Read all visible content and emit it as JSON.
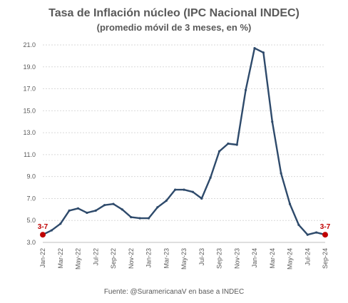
{
  "chart_data": {
    "type": "line",
    "title": "Tasa de Inflación núcleo (IPC Nacional INDEC)",
    "subtitle": "(promedio móvil de 3 meses, en %)",
    "source": "Fuente: @SuramericanaV en base a INDEC",
    "ylim": [
      3.0,
      21.0
    ],
    "yticks": [
      "3.0",
      "5.0",
      "7.0",
      "9.0",
      "11.0",
      "13.0",
      "15.0",
      "17.0",
      "19.0",
      "21.0"
    ],
    "categories": [
      "Jan-22",
      "Feb-22",
      "Mar-22",
      "Apr-22",
      "May-22",
      "Jun-22",
      "Jul-22",
      "Aug-22",
      "Sep-22",
      "Oct-22",
      "Nov-22",
      "Dec-22",
      "Jan-23",
      "Feb-23",
      "Mar-23",
      "Apr-23",
      "May-23",
      "Jun-23",
      "Jul-23",
      "Aug-23",
      "Sep-23",
      "Oct-23",
      "Nov-23",
      "Dec-23",
      "Jan-24",
      "Feb-24",
      "Mar-24",
      "Apr-24",
      "May-24",
      "Jun-24",
      "Jul-24",
      "Aug-24",
      "Sep-24"
    ],
    "xticks": [
      "Jan-22",
      "Mar-22",
      "May-22",
      "Jul-22",
      "Sep-22",
      "Nov-22",
      "Jan-23",
      "Mar-23",
      "May-23",
      "Jul-23",
      "Sep-23",
      "Nov-23",
      "Jan-24",
      "Mar-24",
      "May-24",
      "Jul-24",
      "Sep-24"
    ],
    "series": [
      {
        "values": [
          3.7,
          4.1,
          4.7,
          5.9,
          6.1,
          5.7,
          5.9,
          6.4,
          6.5,
          6.0,
          5.3,
          5.2,
          5.2,
          6.2,
          6.8,
          7.8,
          7.8,
          7.6,
          7.0,
          8.9,
          11.3,
          12.0,
          11.9,
          16.9,
          20.7,
          20.3,
          14.0,
          9.3,
          6.5,
          4.6,
          3.7,
          3.9,
          3.7
        ]
      }
    ],
    "end_labels": [
      "3-7",
      "3-7"
    ],
    "colors": {
      "line": "#2e4a6b",
      "marker": "#c00000",
      "grid": "#d9d9d9",
      "axis": "#bfbfbf"
    },
    "grid": true
  }
}
